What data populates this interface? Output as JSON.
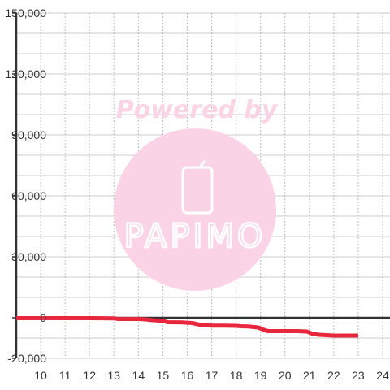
{
  "chart_data": {
    "type": "line",
    "title": "",
    "xlabel": "",
    "ylabel": "",
    "xlim": [
      9,
      24.3
    ],
    "ylim": [
      -20000,
      150000
    ],
    "x_ticks": [
      10,
      11,
      12,
      13,
      14,
      15,
      16,
      17,
      18,
      19,
      20,
      21,
      22,
      23,
      24
    ],
    "x_tick_labels": [
      "10",
      "11",
      "12",
      "13",
      "14",
      "15",
      "16",
      "17",
      "18",
      "19",
      "20",
      "21",
      "22",
      "23",
      "24"
    ],
    "y_ticks": [
      -20000,
      0,
      30000,
      60000,
      90000,
      120000,
      150000
    ],
    "y_tick_labels": [
      "-20,000",
      "0",
      "30,000",
      "60,000",
      "90,000",
      "120,000",
      "150,000"
    ],
    "grid": true,
    "series": [
      {
        "color": "#e8263c",
        "x": [
          9,
          11,
          12,
          13,
          13.2,
          14,
          14.3,
          14.6,
          15,
          15.2,
          15.8,
          16.2,
          16.5,
          16.8,
          17,
          17.5,
          18,
          18.2,
          18.5,
          18.9,
          19.1,
          19.3,
          20.5,
          20.9,
          21.1,
          21.4,
          22,
          23
        ],
        "y": [
          -200,
          -200,
          -200,
          -300,
          -600,
          -600,
          -800,
          -1200,
          -1500,
          -2200,
          -2300,
          -2600,
          -3400,
          -3600,
          -3900,
          -3900,
          -4000,
          -4200,
          -4300,
          -4800,
          -5800,
          -6600,
          -6600,
          -6800,
          -7800,
          -8400,
          -8800,
          -8800
        ]
      }
    ]
  },
  "watermark": {
    "text": "Powered by",
    "brand": "PAPIMO",
    "circle_color": "#fbd3e6"
  }
}
